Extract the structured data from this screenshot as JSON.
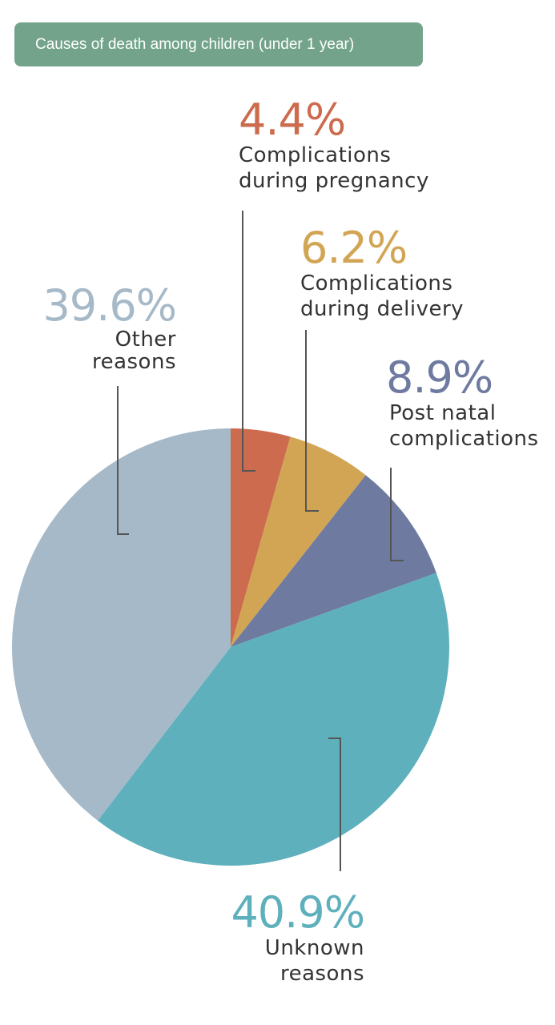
{
  "title": "Causes of death among children (under 1 year)",
  "colors": {
    "title_bg": "#73a48b",
    "pregnancy": "#cc6b4d",
    "delivery": "#d2a555",
    "post_natal": "#6e7aa0",
    "unknown": "#5eb0bc",
    "other": "#a5b9c8"
  },
  "chart_data": {
    "type": "pie",
    "title": "Causes of death among children (under 1 year)",
    "unit": "%",
    "slices": [
      {
        "label_line1": "Complications",
        "label_line2": "during pregnancy",
        "value": 4.4,
        "display": "4.4%",
        "color": "#cc6b4d"
      },
      {
        "label_line1": "Complications",
        "label_line2": "during delivery",
        "value": 6.2,
        "display": "6.2%",
        "color": "#d2a555"
      },
      {
        "label_line1": "Post natal",
        "label_line2": "complications",
        "value": 8.9,
        "display": "8.9%",
        "color": "#6e7aa0"
      },
      {
        "label_line1": "Unknown",
        "label_line2": "reasons",
        "value": 40.9,
        "display": "40.9%",
        "color": "#5eb0bc"
      },
      {
        "label_line1": "Other",
        "label_line2": "reasons",
        "value": 39.6,
        "display": "39.6%",
        "color": "#a5b9c8"
      }
    ]
  }
}
